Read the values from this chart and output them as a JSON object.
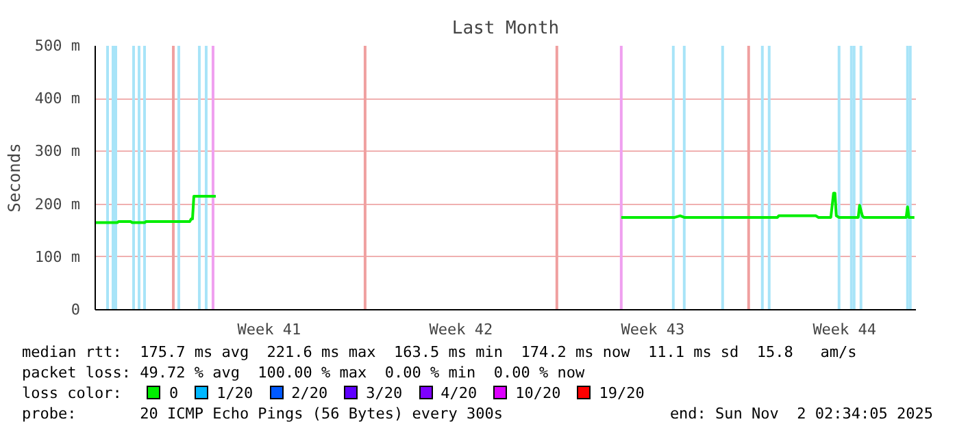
{
  "chart_data": {
    "type": "line",
    "title": "Last Month",
    "ylabel": "Seconds",
    "xlim": [
      "2025-10-03T03:36",
      "2025-11-02T02:34"
    ],
    "xticks": [
      {
        "value": "2025-10-09T12:00",
        "label": "Week 41"
      },
      {
        "value": "2025-10-16T12:00",
        "label": "Week 42"
      },
      {
        "value": "2025-10-23T12:00",
        "label": "Week 43"
      },
      {
        "value": "2025-10-30T12:00",
        "label": "Week 44"
      }
    ],
    "ylim": [
      0,
      500
    ],
    "yticks": [
      0,
      {
        "value": 100,
        "label": "100 m"
      },
      {
        "value": 200,
        "label": "200 m"
      },
      {
        "value": 300,
        "label": "300 m"
      },
      {
        "value": 400,
        "label": "400 m"
      },
      {
        "value": 500,
        "label": "500 m"
      }
    ],
    "grid": "y",
    "legend": "bottom",
    "legend_title": "loss color:",
    "series": [
      {
        "name": "0",
        "color": "#00ee00",
        "x": [
          "2025-10-03T03:36",
          "2025-10-03T22:48",
          "2025-10-04T00:00",
          "2025-10-04T10:48",
          "2025-10-04T12:00",
          "2025-10-04T22:48",
          "2025-10-05T00:00",
          "2025-10-06T14:24",
          "2025-10-06T15:36",
          "2025-10-06T16:48",
          "2025-10-06T18:00",
          "2025-10-07T13:12",
          "2025-10-08T00:00",
          "2025-10-22T08:24",
          "2025-10-24T07:12",
          "2025-10-24T12:00",
          "2025-10-24T15:36",
          "2025-10-28T01:12",
          "2025-10-28T02:24",
          "2025-10-29T10:48",
          "2025-10-29T13:12",
          "2025-10-30T00:00",
          "2025-10-30T02:24",
          "2025-10-30T03:36",
          "2025-10-30T04:48",
          "2025-10-30T07:12",
          "2025-10-31T00:00",
          "2025-10-31T01:12",
          "2025-10-31T03:36",
          "2025-10-31T04:48",
          "2025-11-01T18:00",
          "2025-11-01T19:12",
          "2025-11-01T20:24",
          "2025-11-02T01:12"
        ],
        "values": [
          165,
          165,
          167,
          167,
          165,
          165,
          167,
          167,
          172,
          172,
          215,
          215,
          null,
          175,
          175,
          178,
          175,
          175,
          178,
          178,
          175,
          175,
          221,
          221,
          178,
          175,
          175,
          198,
          178,
          175,
          175,
          195,
          175,
          175
        ]
      },
      {
        "name": "1/20",
        "color": "#00b8ff"
      },
      {
        "name": "2/20",
        "color": "#0059ff"
      },
      {
        "name": "3/20",
        "color": "#5e00ff"
      },
      {
        "name": "4/20",
        "color": "#7e00ff"
      },
      {
        "name": "10/20",
        "color": "#dd00ff"
      },
      {
        "name": "19/20",
        "color": "#ff0000"
      }
    ],
    "ref_lines": [
      {
        "axis": "x",
        "value": "2025-10-06",
        "color": "#f0a0a0"
      },
      {
        "axis": "x",
        "value": "2025-10-13",
        "color": "#f0a0a0"
      },
      {
        "axis": "x",
        "value": "2025-10-20",
        "color": "#f0a0a0"
      },
      {
        "axis": "x",
        "value": "2025-10-27",
        "color": "#f0a0a0"
      },
      {
        "axis": "x",
        "value": "2025-10-03T14:24",
        "color": "#a8e4f8"
      },
      {
        "axis": "x",
        "value": "2025-10-03T19:12",
        "color": "#a8e4f8"
      },
      {
        "axis": "x",
        "value": "2025-10-03T21:36",
        "color": "#a8e4f8"
      },
      {
        "axis": "x",
        "value": "2025-10-04T13:12",
        "color": "#a8e4f8"
      },
      {
        "axis": "x",
        "value": "2025-10-04T18:00",
        "color": "#a8e4f8"
      },
      {
        "axis": "x",
        "value": "2025-10-04T22:48",
        "color": "#a8e4f8"
      },
      {
        "axis": "x",
        "value": "2025-10-06T04:48",
        "color": "#a8e4f8"
      },
      {
        "axis": "x",
        "value": "2025-10-06T22:48",
        "color": "#a8e4f8"
      },
      {
        "axis": "x",
        "value": "2025-10-07T04:48",
        "color": "#a8e4f8"
      },
      {
        "axis": "x",
        "value": "2025-10-07T10:48",
        "color": "#f0a0f0"
      },
      {
        "axis": "x",
        "value": "2025-10-22T08:24",
        "color": "#f0a0f0"
      },
      {
        "axis": "x",
        "value": "2025-10-24T06:00",
        "color": "#a8e4f8"
      },
      {
        "axis": "x",
        "value": "2025-10-24T15:36",
        "color": "#a8e4f8"
      },
      {
        "axis": "x",
        "value": "2025-10-26T01:12",
        "color": "#a8e4f8"
      },
      {
        "axis": "x",
        "value": "2025-10-27T12:00",
        "color": "#a8e4f8"
      },
      {
        "axis": "x",
        "value": "2025-10-27T18:00",
        "color": "#a8e4f8"
      },
      {
        "axis": "x",
        "value": "2025-10-30T07:12",
        "color": "#a8e4f8"
      },
      {
        "axis": "x",
        "value": "2025-10-30T18:00",
        "color": "#a8e4f8"
      },
      {
        "axis": "x",
        "value": "2025-10-30T20:24",
        "color": "#a8e4f8"
      },
      {
        "axis": "x",
        "value": "2025-10-31T02:24",
        "color": "#a8e4f8"
      },
      {
        "axis": "x",
        "value": "2025-11-01T19:12",
        "color": "#a8e4f8"
      },
      {
        "axis": "x",
        "value": "2025-11-01T21:36",
        "color": "#a8e4f8"
      }
    ],
    "annotations": [
      "median rtt:  175.7 ms avg  221.6 ms max  163.5 ms min  174.2 ms now  11.1 ms sd  15.8   am/s",
      "packet loss: 49.72 % avg  100.00 % max  0.00 % min  0.00 % now",
      "probe:       20 ICMP Echo Pings (56 Bytes) every 300s",
      "end: Sun Nov  2 02:34:05 2025"
    ]
  }
}
